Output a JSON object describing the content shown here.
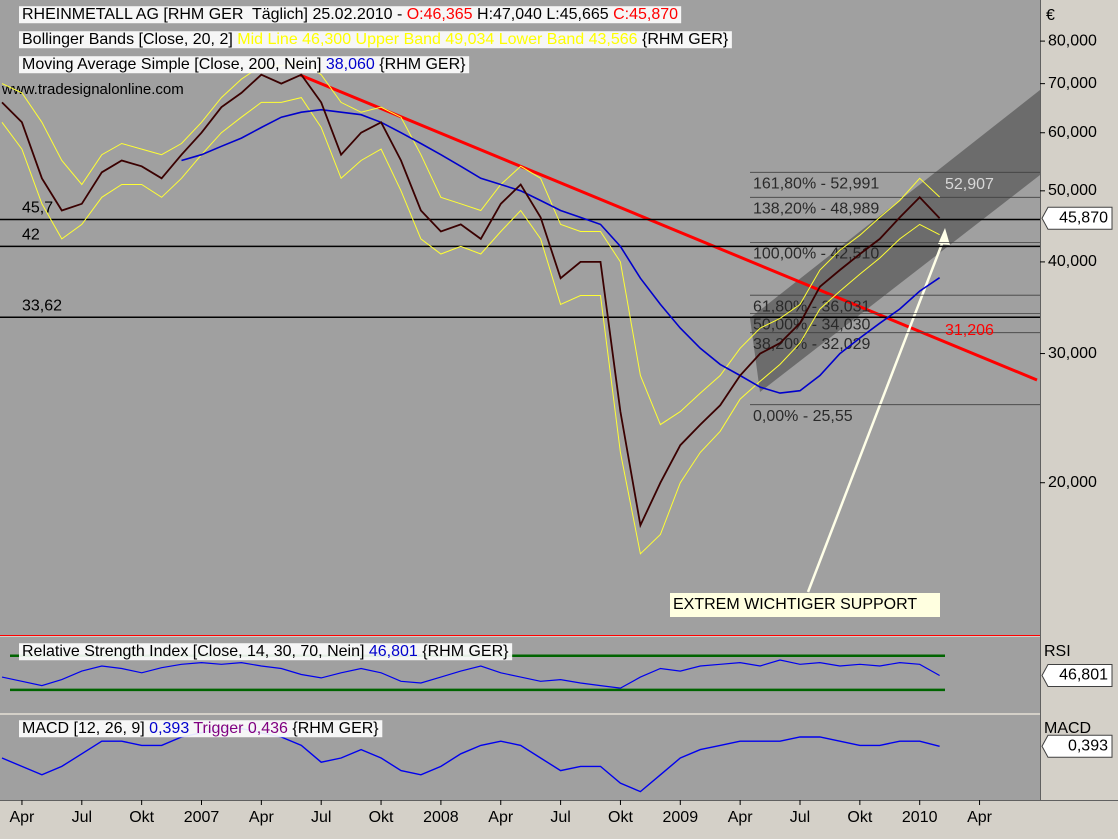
{
  "chart_data": {
    "type": "line",
    "title_parts": [
      {
        "text": "RHEINMETALL AG [RHM GER  Täglich] 25.02.2010 - ",
        "color": "#000000"
      },
      {
        "text": "O:46,365",
        "color": "#ff0000"
      },
      {
        "text": " H:47,040 L:45,665 ",
        "color": "#000000"
      },
      {
        "text": "C:45,870",
        "color": "#ff0000"
      }
    ],
    "legend_bollinger": [
      {
        "text": "Bollinger Bands [Close, 20, 2] ",
        "color": "#000000"
      },
      {
        "text": "Mid Line 46,300 Upper Band 49,034 Lower Band 43,566",
        "color": "#ffff00"
      },
      {
        "text": " {RHM GER}",
        "color": "#000000"
      }
    ],
    "legend_ma": [
      {
        "text": "Moving Average Simple [Close, 200, Nein] ",
        "color": "#000000"
      },
      {
        "text": "38,060",
        "color": "#0000cc"
      },
      {
        "text": " {RHM GER}",
        "color": "#000000"
      }
    ],
    "watermark": "www.tradesignalonline.com",
    "y_unit": "€",
    "log_scale": true,
    "categories": [
      null,
      "Apr",
      null,
      null,
      "Jul",
      null,
      null,
      "Okt",
      null,
      null,
      "2007",
      null,
      null,
      "Apr",
      null,
      null,
      "Jul",
      null,
      null,
      "Okt",
      null,
      null,
      "2008",
      null,
      null,
      "Apr",
      null,
      null,
      "Jul",
      null,
      null,
      "Okt",
      null,
      null,
      "2009",
      null,
      null,
      "Apr",
      null,
      null,
      "Jul",
      null,
      null,
      "Okt",
      null,
      null,
      "2010",
      null,
      null,
      "Apr"
    ],
    "ylim": [
      12400,
      89600
    ],
    "yticks": [
      {
        "value": 20000,
        "label": "20,000"
      },
      {
        "value": 30000,
        "label": "30,000"
      },
      {
        "value": 40000,
        "label": "40,000"
      },
      {
        "value": 50000,
        "label": "50,000"
      },
      {
        "value": 60000,
        "label": "60,000"
      },
      {
        "value": 70000,
        "label": "70,000"
      },
      {
        "value": 80000,
        "label": "80,000"
      }
    ],
    "last_price": {
      "value": 45870,
      "label": "45,870"
    },
    "series": [
      {
        "color": "#ffff33",
        "width": 1,
        "values": [
          70000,
          68000,
          62000,
          55000,
          51000,
          56000,
          58000,
          57000,
          56000,
          58000,
          62000,
          67000,
          71000,
          74000,
          74000,
          75000,
          72000,
          66000,
          64000,
          65000,
          63000,
          56000,
          49000,
          48000,
          47000,
          51000,
          54000,
          52000,
          45000,
          44000,
          44000,
          40000,
          28000,
          24000,
          25000,
          26500,
          28000,
          30500,
          32500,
          33500,
          35000,
          39000,
          41500,
          43500,
          46000,
          48500,
          52000,
          49034,
          null,
          null
        ]
      },
      {
        "color": "#ffff33",
        "width": 1,
        "values": [
          62000,
          57000,
          48000,
          43000,
          45000,
          49000,
          51000,
          51000,
          49000,
          52000,
          56000,
          60000,
          63000,
          66000,
          66000,
          67000,
          61000,
          52000,
          55000,
          57000,
          50000,
          43000,
          41000,
          42000,
          41000,
          44000,
          47000,
          43000,
          35000,
          36000,
          36000,
          22000,
          16000,
          17000,
          20000,
          22000,
          23500,
          26000,
          27500,
          29000,
          31000,
          34500,
          36500,
          38500,
          40500,
          43000,
          45000,
          43566,
          null,
          null
        ]
      },
      {
        "color": "#0000cc",
        "width": 1.6,
        "values": [
          null,
          null,
          null,
          null,
          null,
          null,
          null,
          null,
          null,
          55000,
          56000,
          57500,
          59000,
          61000,
          63000,
          64000,
          64500,
          64000,
          63500,
          62000,
          60000,
          58000,
          56000,
          54000,
          52000,
          51000,
          50000,
          48500,
          47000,
          46000,
          45000,
          42000,
          38000,
          35000,
          32500,
          30500,
          29000,
          28000,
          27000,
          26500,
          26700,
          28000,
          30000,
          31500,
          33000,
          34500,
          36500,
          38060,
          null,
          null
        ]
      },
      {
        "color": "#3a0000",
        "width": 1.8,
        "values": [
          66000,
          62000,
          52000,
          47000,
          48000,
          53000,
          55000,
          54000,
          52000,
          56000,
          60000,
          65000,
          68000,
          72000,
          70000,
          72000,
          66000,
          56000,
          60000,
          62000,
          55000,
          47000,
          44000,
          45000,
          43000,
          48000,
          51000,
          46000,
          38000,
          40000,
          40000,
          25000,
          17500,
          20000,
          22500,
          24000,
          25500,
          28000,
          30000,
          31000,
          33000,
          37000,
          39000,
          41000,
          43000,
          46000,
          49000,
          45870,
          null,
          null
        ]
      }
    ],
    "levels": [
      {
        "value": 45700,
        "label": "45,7"
      },
      {
        "value": 42000,
        "label": "42"
      },
      {
        "value": 33620,
        "label": "33,62"
      }
    ],
    "fibonacci": [
      {
        "value": 52991,
        "label": "161,80% - 52,991"
      },
      {
        "value": 48989,
        "label": "138,20% - 48,989"
      },
      {
        "value": 42510,
        "label": "100,00% - 42,510"
      },
      {
        "value": 36031,
        "label": "61,80% - 36,031"
      },
      {
        "value": 34030,
        "label": "50,00% - 34,030"
      },
      {
        "value": 32029,
        "label": "38,20% - 32,029"
      },
      {
        "value": 25550,
        "label": "0,00% - 25,55"
      }
    ],
    "annotations": [
      {
        "value": 52907,
        "label": "52,907",
        "color": "#d8d8d8"
      },
      {
        "value": 31206,
        "label": "31,206",
        "color": "#ff0000"
      }
    ],
    "support_note": "EXTREM WICHTIGER SUPPORT",
    "rsi": {
      "header_parts": [
        {
          "text": "Relative Strength Index [Close, 14, 30, 70, Nein] ",
          "color": "#000000"
        },
        {
          "text": "46,801",
          "color": "#0000cc"
        },
        {
          "text": " {RHM GER}",
          "color": "#000000"
        }
      ],
      "label": "RSI",
      "last": {
        "value": 46.801,
        "label": "46,801"
      },
      "ylim": [
        4,
        92
      ],
      "levels": [
        30,
        70
      ],
      "color": "#0000ee",
      "values": [
        45,
        40,
        35,
        42,
        52,
        58,
        55,
        50,
        56,
        60,
        62,
        60,
        62,
        58,
        55,
        48,
        44,
        50,
        55,
        50,
        40,
        38,
        45,
        52,
        58,
        50,
        45,
        40,
        42,
        38,
        35,
        32,
        45,
        55,
        52,
        58,
        60,
        62,
        58,
        65,
        60,
        62,
        58,
        60,
        58,
        62,
        60,
        46.801,
        null,
        null
      ]
    },
    "macd": {
      "header_parts": [
        {
          "text": "MACD [12, 26, 9] ",
          "color": "#000000"
        },
        {
          "text": "0,393",
          "color": "#0000cc"
        },
        {
          "text": " Trigger ",
          "color": "#800080"
        },
        {
          "text": "0,436",
          "color": "#800080"
        },
        {
          "text": " {RHM GER}",
          "color": "#000000"
        }
      ],
      "label": "MACD",
      "last": {
        "value": 0.393,
        "label": "0,393"
      },
      "ylim": [
        -6,
        4
      ],
      "color": "#0000ee",
      "values": [
        -1,
        -2,
        -3,
        -2,
        -0.5,
        1,
        1,
        0.5,
        0.5,
        1.5,
        2,
        2.5,
        2.5,
        2,
        1.5,
        0.5,
        -1.5,
        -1,
        0,
        -1,
        -2.5,
        -3,
        -2,
        -0.5,
        0.5,
        1,
        0.5,
        -1,
        -2.5,
        -2,
        -2,
        -4,
        -5,
        -3,
        -1,
        0,
        0.5,
        1,
        1,
        1,
        1.5,
        1.5,
        1,
        0.5,
        0.5,
        1,
        1,
        0.393,
        null,
        null
      ]
    }
  }
}
